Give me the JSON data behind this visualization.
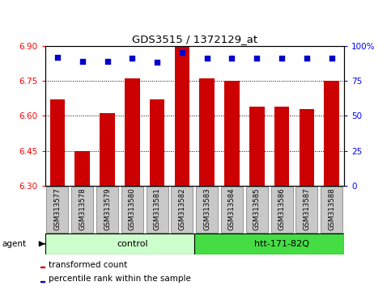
{
  "title": "GDS3515 / 1372129_at",
  "samples": [
    "GSM313577",
    "GSM313578",
    "GSM313579",
    "GSM313580",
    "GSM313581",
    "GSM313582",
    "GSM313583",
    "GSM313584",
    "GSM313585",
    "GSM313586",
    "GSM313587",
    "GSM313588"
  ],
  "bar_values": [
    6.67,
    6.45,
    6.61,
    6.76,
    6.67,
    6.9,
    6.76,
    6.75,
    6.64,
    6.64,
    6.63,
    6.75
  ],
  "bar_bottom": 6.3,
  "percentile_values": [
    92,
    89,
    89,
    91,
    88,
    95,
    91,
    91,
    91,
    91,
    91,
    91
  ],
  "ylim_left": [
    6.3,
    6.9
  ],
  "ylim_right": [
    0,
    100
  ],
  "yticks_left": [
    6.3,
    6.45,
    6.6,
    6.75,
    6.9
  ],
  "yticks_right": [
    0,
    25,
    50,
    75,
    100
  ],
  "bar_color": "#cc0000",
  "dot_color": "#0000cc",
  "groups": [
    {
      "label": "control",
      "start": 0,
      "end": 6,
      "color": "#ccffcc"
    },
    {
      "label": "htt-171-82Q",
      "start": 6,
      "end": 12,
      "color": "#44dd44"
    }
  ],
  "agent_label": "agent",
  "legend_bar_label": "transformed count",
  "legend_dot_label": "percentile rank within the sample",
  "grid_lines": [
    6.45,
    6.6,
    6.75
  ],
  "box_color": "#c8c8c8",
  "box_border": "#888888"
}
